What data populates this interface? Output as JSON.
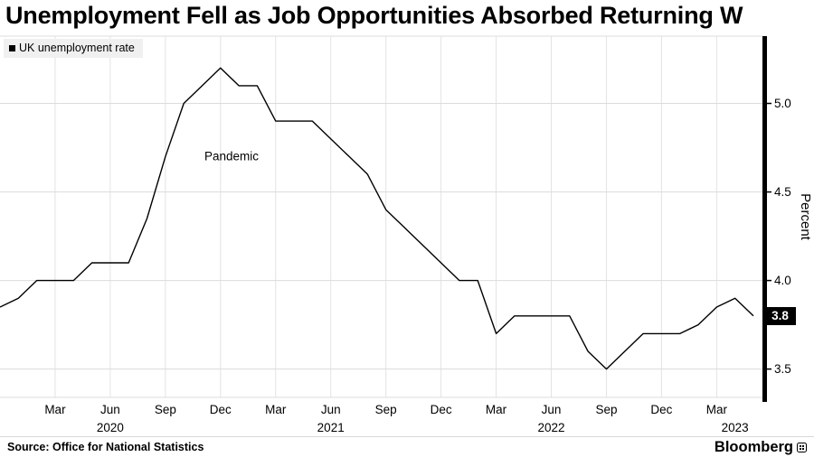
{
  "header": {
    "title": "Unemployment Fell as Job Opportunities Absorbed Returning W"
  },
  "legend": {
    "label": "UK unemployment rate"
  },
  "y_axis": {
    "unit_label": "Percent",
    "current_value_label": "3.8"
  },
  "footer": {
    "source": "Source: Office for National Statistics",
    "brand": "Bloomberg"
  },
  "chart_data": {
    "type": "line",
    "title": "Unemployment Fell as Job Opportunities Absorbed Returning W",
    "series_name": "UK unemployment rate",
    "ylabel": "Percent",
    "ylim": [
      3.34,
      5.38
    ],
    "yticks": [
      3.5,
      4.0,
      4.5,
      5.0
    ],
    "ytick_labels": [
      "3.5",
      "4.0",
      "4.5",
      "5.0"
    ],
    "grid": true,
    "line_color": "#000000",
    "current_value": 3.8,
    "x": [
      "Dec 2019",
      "Jan 2020",
      "Feb 2020",
      "Mar 2020",
      "Apr 2020",
      "May 2020",
      "Jun 2020",
      "Jul 2020",
      "Aug 2020",
      "Sep 2020",
      "Oct 2020",
      "Nov 2020",
      "Dec 2020",
      "Jan 2021",
      "Feb 2021",
      "Mar 2021",
      "Apr 2021",
      "May 2021",
      "Jun 2021",
      "Jul 2021",
      "Aug 2021",
      "Sep 2021",
      "Oct 2021",
      "Nov 2021",
      "Dec 2021",
      "Jan 2022",
      "Feb 2022",
      "Mar 2022",
      "Apr 2022",
      "May 2022",
      "Jun 2022",
      "Jul 2022",
      "Aug 2022",
      "Sep 2022",
      "Oct 2022",
      "Nov 2022",
      "Dec 2022",
      "Jan 2023",
      "Feb 2023",
      "Mar 2023",
      "Apr 2023",
      "May 2023"
    ],
    "values": [
      3.85,
      3.9,
      4.0,
      4.0,
      4.0,
      4.1,
      4.1,
      4.1,
      4.35,
      4.7,
      5.0,
      5.1,
      5.2,
      5.1,
      5.1,
      4.9,
      4.9,
      4.9,
      4.8,
      4.7,
      4.6,
      4.4,
      4.3,
      4.2,
      4.1,
      4.0,
      4.0,
      3.7,
      3.8,
      3.8,
      3.8,
      3.8,
      3.6,
      3.5,
      3.6,
      3.7,
      3.7,
      3.7,
      3.75,
      3.85,
      3.9,
      3.8
    ],
    "x_tick_indices": [
      3,
      6,
      9,
      12,
      15,
      18,
      21,
      24,
      27,
      30,
      33,
      36,
      39
    ],
    "x_tick_labels": [
      "Mar",
      "Jun",
      "Sep",
      "Dec",
      "Mar",
      "Jun",
      "Sep",
      "Dec",
      "Mar",
      "Jun",
      "Sep",
      "Dec",
      "Mar"
    ],
    "year_labels": [
      {
        "index": 6,
        "label": "2020"
      },
      {
        "index": 18,
        "label": "2021"
      },
      {
        "index": 30,
        "label": "2022"
      },
      {
        "index": 40,
        "label": "2023"
      }
    ],
    "annotation": {
      "text": "Pandemic",
      "x_index": 12.6,
      "value": 4.68
    },
    "legend_position": "top-left"
  }
}
